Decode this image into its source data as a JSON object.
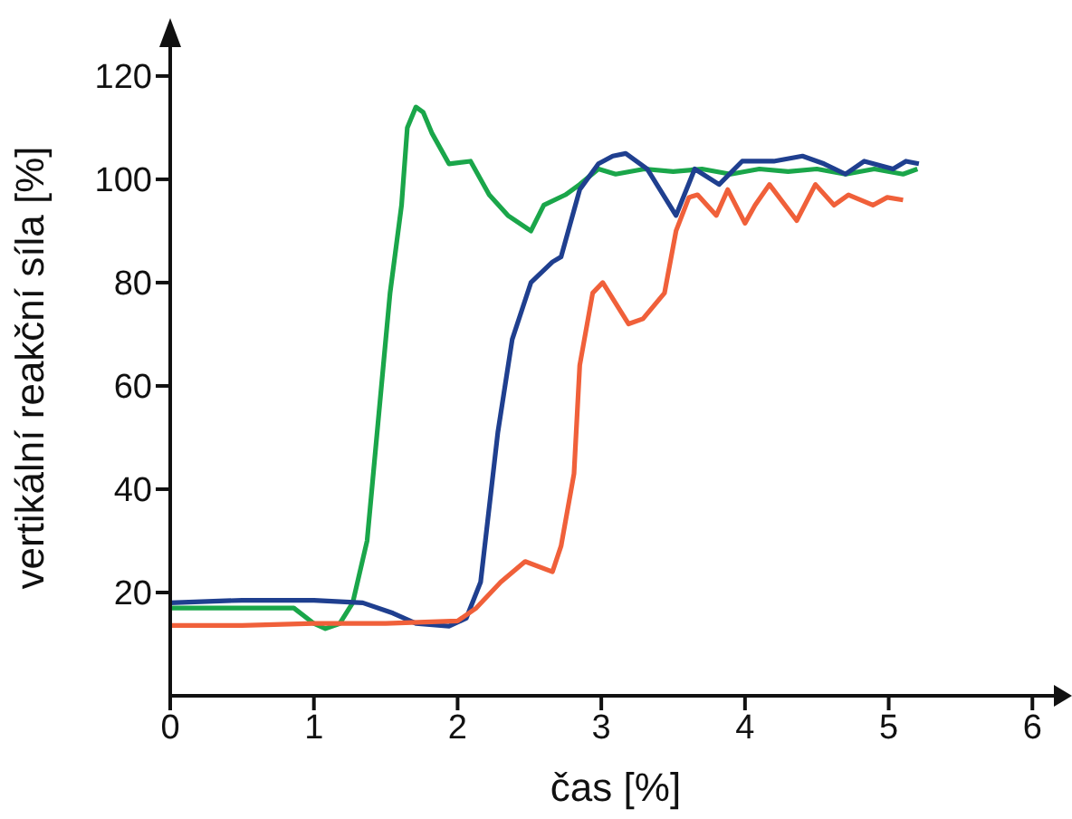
{
  "chart_data": {
    "type": "line",
    "xlabel": "čas [%]",
    "ylabel": "vertikální reakční síla [%]",
    "xlim": [
      0,
      6.2
    ],
    "ylim": [
      0,
      127
    ],
    "xticks": [
      0,
      1,
      2,
      3,
      4,
      5,
      6
    ],
    "yticks": [
      20,
      40,
      60,
      80,
      100,
      120
    ],
    "grid": false,
    "legend": false,
    "marker": "none",
    "line_style": "solid",
    "series": [
      {
        "color": "#1aa64a",
        "x": [
          0,
          0.4,
          0.86,
          1.0,
          1.08,
          1.18,
          1.27,
          1.37,
          1.46,
          1.53,
          1.61,
          1.65,
          1.71,
          1.76,
          1.82,
          1.94,
          2.09,
          2.22,
          2.35,
          2.51,
          2.6,
          2.75,
          2.85,
          2.98,
          3.1,
          3.3,
          3.5,
          3.7,
          3.9,
          4.1,
          4.3,
          4.5,
          4.7,
          4.9,
          5.1,
          5.2
        ],
        "values": [
          17,
          17,
          17,
          14,
          13,
          14,
          18,
          30,
          57,
          78,
          95,
          110,
          114,
          113,
          109,
          103,
          103.5,
          97,
          93,
          90,
          95,
          97,
          99,
          102,
          101,
          102,
          101.5,
          102,
          101,
          102,
          101.5,
          102,
          101,
          102,
          101,
          102
        ]
      },
      {
        "color": "#1f3f8f",
        "x": [
          0,
          0.5,
          1.0,
          1.34,
          1.55,
          1.71,
          1.94,
          2.06,
          2.16,
          2.28,
          2.38,
          2.51,
          2.66,
          2.72,
          2.85,
          2.98,
          3.08,
          3.17,
          3.32,
          3.52,
          3.65,
          3.82,
          3.98,
          4.2,
          4.4,
          4.55,
          4.7,
          4.83,
          5.03,
          5.12,
          5.21
        ],
        "values": [
          18,
          18.5,
          18.5,
          18,
          16,
          14,
          13.5,
          15,
          22,
          51,
          69,
          80,
          84,
          85,
          98,
          103,
          104.5,
          105,
          102,
          93,
          102,
          99,
          103.5,
          103.5,
          104.5,
          103,
          101,
          103.5,
          102,
          103.5,
          103
        ]
      },
      {
        "color": "#f0603a",
        "x": [
          0,
          0.5,
          1.0,
          1.5,
          2.0,
          2.13,
          2.3,
          2.47,
          2.66,
          2.72,
          2.81,
          2.85,
          2.94,
          3.01,
          3.19,
          3.29,
          3.44,
          3.52,
          3.61,
          3.67,
          3.8,
          3.88,
          4.0,
          4.07,
          4.17,
          4.36,
          4.49,
          4.62,
          4.72,
          4.89,
          4.99,
          5.1
        ],
        "values": [
          13.6,
          13.6,
          14,
          14,
          14.5,
          17,
          22,
          26,
          24,
          29,
          43,
          64,
          78,
          80,
          72,
          73,
          78,
          90,
          96.5,
          97,
          93,
          98,
          91.5,
          95,
          99,
          92,
          99,
          95,
          97,
          95,
          96.5,
          96
        ]
      }
    ]
  }
}
